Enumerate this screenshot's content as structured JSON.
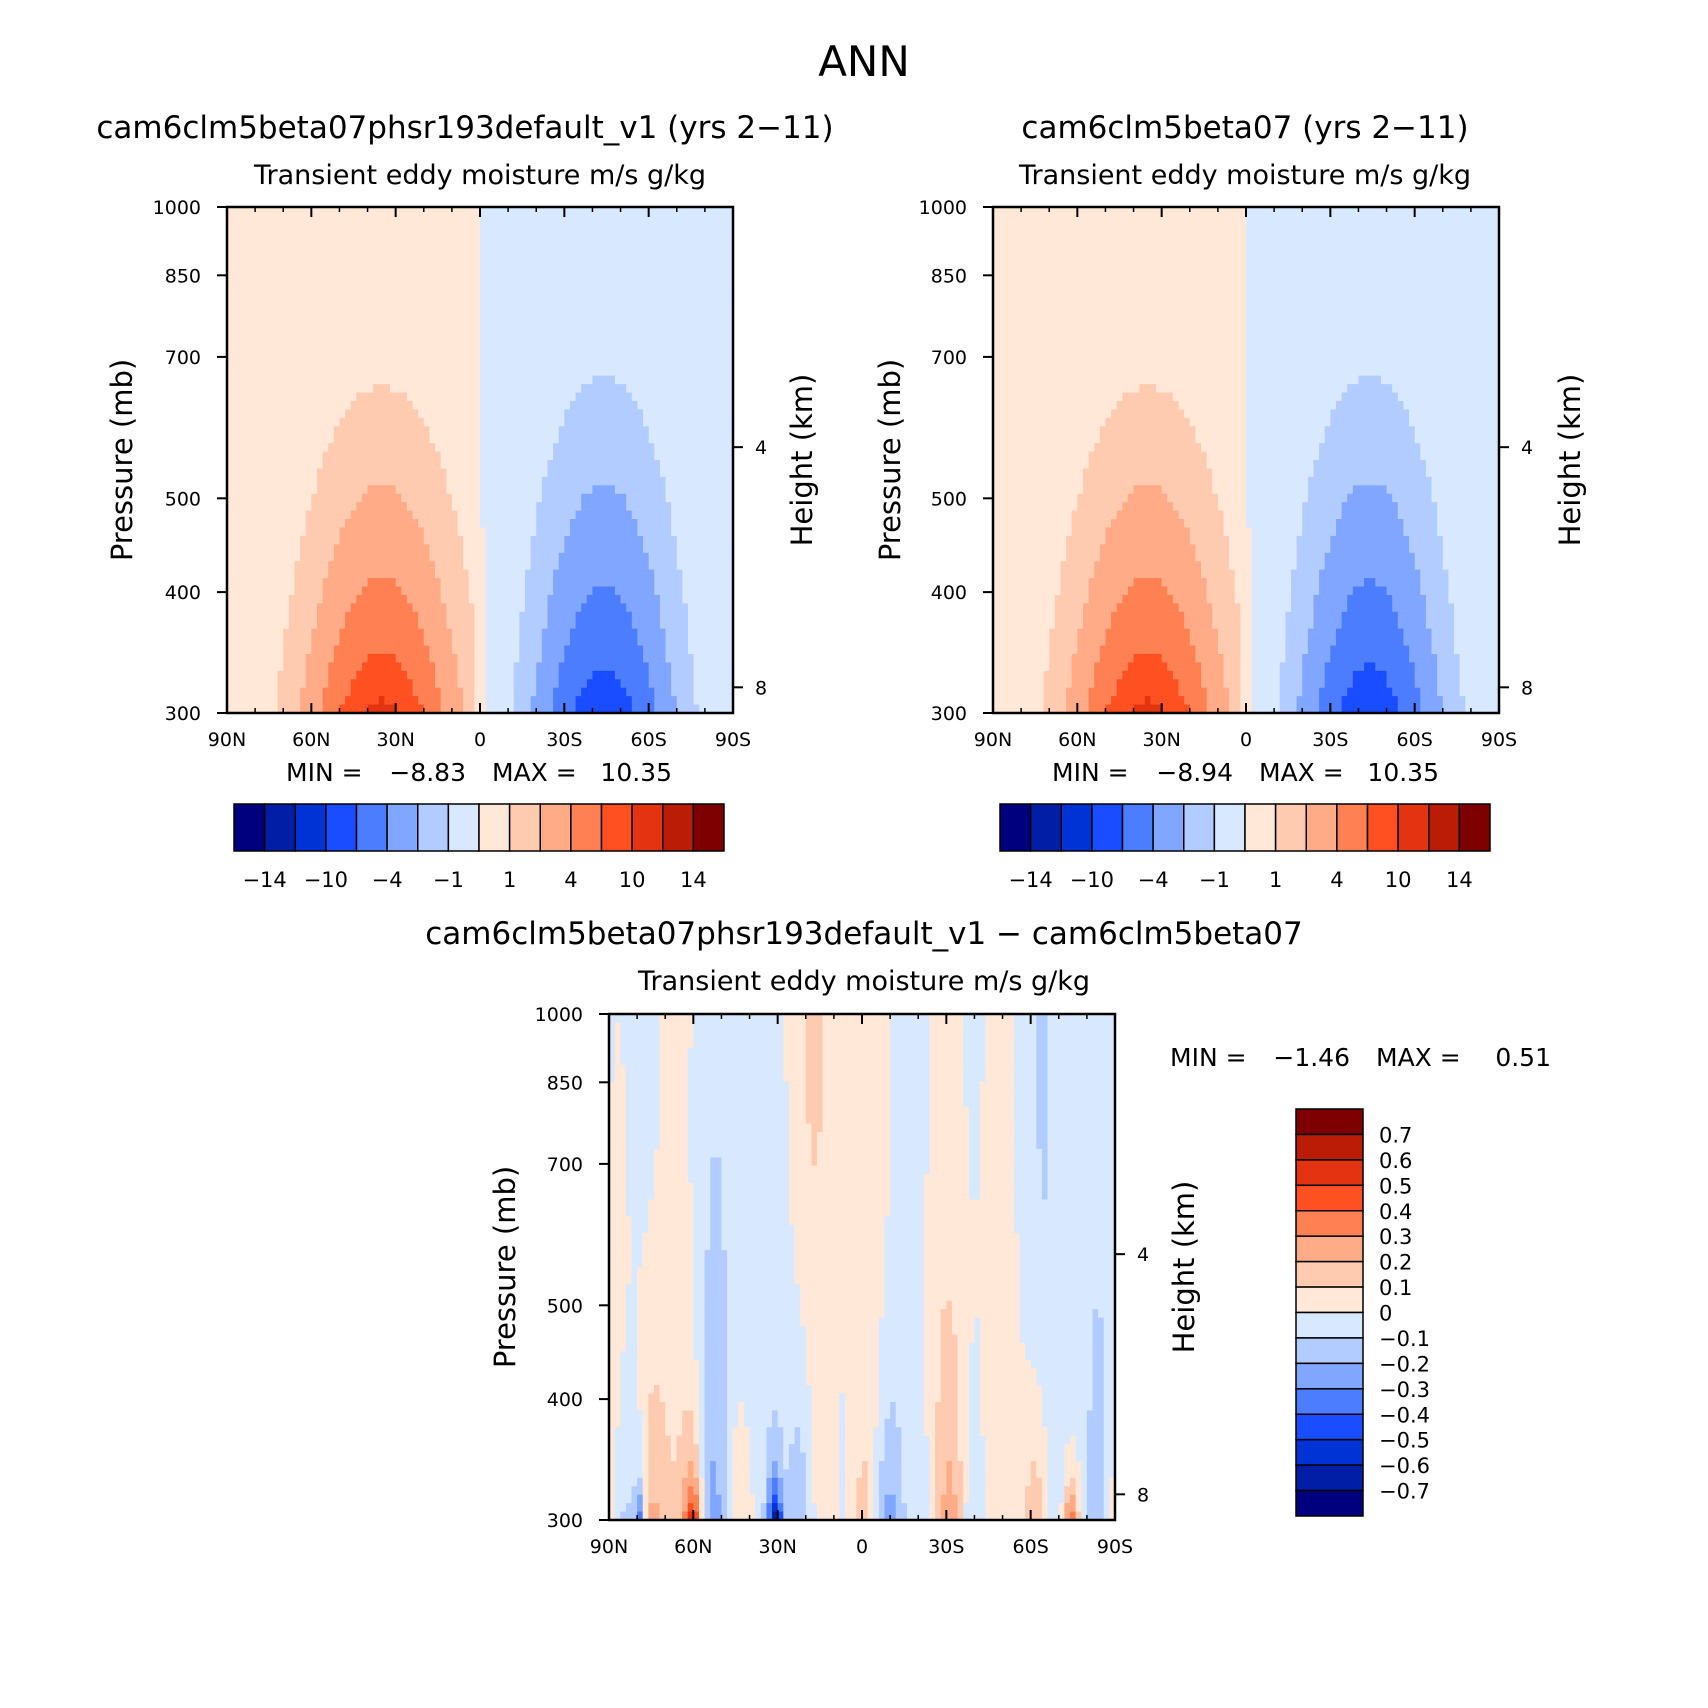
{
  "figure_title": "ANN",
  "chart_data": [
    {
      "type": "heatmap",
      "title": "cam6clm5beta07phsr193default_v1 (yrs 2−11)",
      "subtitle": "Transient eddy moisture m/s g/kg",
      "ylabel": "Pressure (mb)",
      "y2label": "Height (km)",
      "xticks": [
        "90N",
        "60N",
        "30N",
        "0",
        "30S",
        "60S",
        "90S"
      ],
      "yticks": [
        "300",
        "400",
        "500",
        "700",
        "850",
        "1000"
      ],
      "y2ticks": [
        "8",
        "4"
      ],
      "xlim": [
        90,
        -90
      ],
      "ylim": [
        1000,
        300
      ],
      "log_pressure_axis": true,
      "min_label": "MIN =",
      "min_value": "−8.83",
      "max_label": "MAX =",
      "max_value": "10.35",
      "levels": [
        -14,
        -12,
        -10,
        -7,
        -4,
        -2,
        -1,
        0,
        1,
        2,
        4,
        7,
        10,
        12,
        14
      ],
      "colorbar_ticks": [
        "−14",
        "−10",
        "−4",
        "−1",
        "1",
        "4",
        "10",
        "14"
      ],
      "positive_max": 10.35,
      "negative_min": -8.83,
      "positive_peak_lat": 35,
      "negative_peak_lat": -44
    },
    {
      "type": "heatmap",
      "title": "cam6clm5beta07 (yrs 2−11)",
      "subtitle": "Transient eddy moisture m/s g/kg",
      "ylabel": "Pressure (mb)",
      "y2label": "Height (km)",
      "xticks": [
        "90N",
        "60N",
        "30N",
        "0",
        "30S",
        "60S",
        "90S"
      ],
      "yticks": [
        "300",
        "400",
        "500",
        "700",
        "850",
        "1000"
      ],
      "y2ticks": [
        "8",
        "4"
      ],
      "xlim": [
        90,
        -90
      ],
      "ylim": [
        1000,
        300
      ],
      "log_pressure_axis": true,
      "min_label": "MIN =",
      "min_value": "−8.94",
      "max_label": "MAX =",
      "max_value": "10.35",
      "levels": [
        -14,
        -12,
        -10,
        -7,
        -4,
        -2,
        -1,
        0,
        1,
        2,
        4,
        7,
        10,
        12,
        14
      ],
      "colorbar_ticks": [
        "−14",
        "−10",
        "−4",
        "−1",
        "1",
        "4",
        "10",
        "14"
      ],
      "positive_max": 10.35,
      "negative_min": -8.94,
      "positive_peak_lat": 35,
      "negative_peak_lat": -44
    },
    {
      "type": "heatmap",
      "title": "cam6clm5beta07phsr193default_v1 − cam6clm5beta07",
      "subtitle": "Transient eddy moisture m/s g/kg",
      "ylabel": "Pressure (mb)",
      "y2label": "Height (km)",
      "xticks": [
        "90N",
        "60N",
        "30N",
        "0",
        "30S",
        "60S",
        "90S"
      ],
      "yticks": [
        "300",
        "400",
        "500",
        "700",
        "850",
        "1000"
      ],
      "y2ticks": [
        "8",
        "4"
      ],
      "xlim": [
        90,
        -90
      ],
      "ylim": [
        1000,
        300
      ],
      "log_pressure_axis": true,
      "min_label": "MIN =",
      "min_value": "−1.46",
      "max_label": "MAX =",
      "max_value": "0.51",
      "levels": [
        -0.7,
        -0.6,
        -0.5,
        -0.4,
        -0.3,
        -0.2,
        -0.1,
        0,
        0.1,
        0.2,
        0.3,
        0.4,
        0.5,
        0.6,
        0.7
      ],
      "colorbar_ticks": [
        "0.7",
        "0.6",
        "0.5",
        "0.4",
        "0.3",
        "0.2",
        "0.1",
        "0",
        "−0.1",
        "−0.2",
        "−0.3",
        "−0.4",
        "−0.5",
        "−0.6",
        "−0.7"
      ]
    }
  ],
  "colors": {
    "palette": [
      "#00007f",
      "#001ea6",
      "#0033d6",
      "#1a4dff",
      "#4d7dff",
      "#80a6ff",
      "#b3ccff",
      "#d7e8ff",
      "#ffe8d8",
      "#ffcbb0",
      "#ffab88",
      "#ff8052",
      "#ff5022",
      "#e33310",
      "#ba1c05",
      "#7f0000"
    ],
    "missing": "#ffffff"
  }
}
